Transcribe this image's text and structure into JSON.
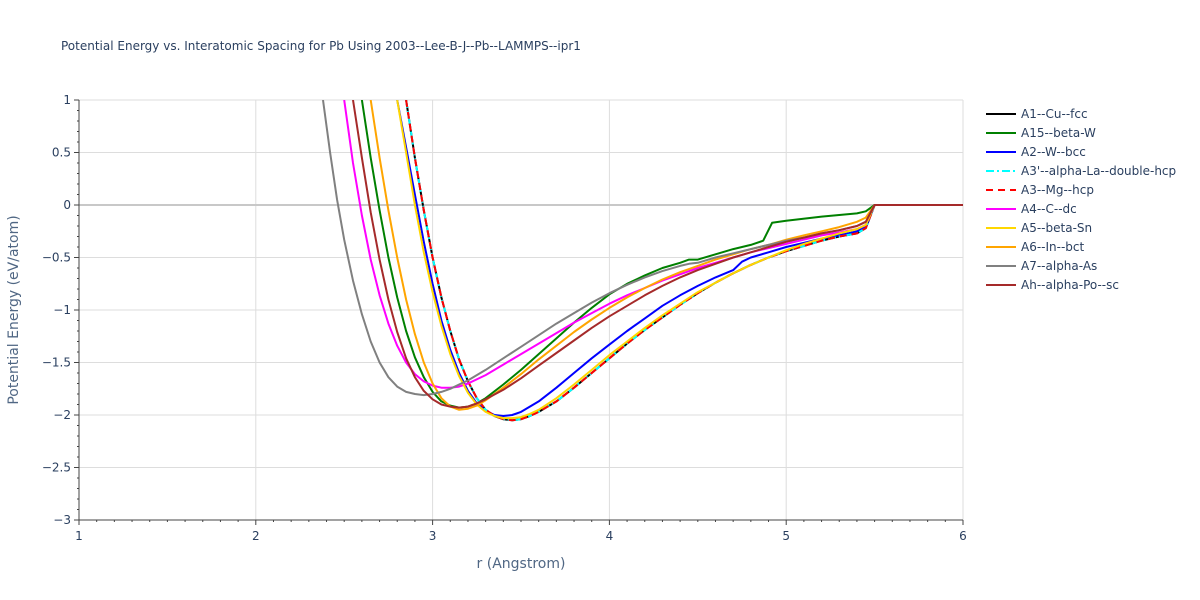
{
  "chart_data": {
    "type": "line",
    "title": "Potential Energy vs. Interatomic Spacing for Pb Using 2003--Lee-B-J--Pb--LAMMPS--ipr1",
    "xlabel": "r (Angstrom)",
    "ylabel": "Potential Energy (eV/atom)",
    "xlim": [
      1,
      6
    ],
    "ylim": [
      -3,
      1
    ],
    "x_ticks": [
      "1",
      "2",
      "3",
      "4",
      "5",
      "6"
    ],
    "y_ticks": [
      "1",
      "0.5",
      "0",
      "−0.5",
      "−1",
      "−1.5",
      "−2",
      "−2.5",
      "−3"
    ],
    "grid": true,
    "legend_position": "right",
    "series": [
      {
        "name": "A1--Cu--fcc",
        "color": "#000000",
        "dash": "solid",
        "x": [
          2.85,
          2.9,
          2.95,
          3.0,
          3.05,
          3.1,
          3.15,
          3.2,
          3.25,
          3.3,
          3.35,
          3.4,
          3.45,
          3.5,
          3.55,
          3.6,
          3.7,
          3.8,
          3.9,
          4.0,
          4.1,
          4.2,
          4.3,
          4.4,
          4.5,
          4.6,
          4.7,
          4.8,
          4.9,
          5.0,
          5.1,
          5.2,
          5.3,
          5.4,
          5.45,
          5.5,
          6.0
        ],
        "y": [
          1.0,
          0.45,
          -0.05,
          -0.5,
          -0.88,
          -1.2,
          -1.47,
          -1.68,
          -1.84,
          -1.95,
          -2.01,
          -2.04,
          -2.05,
          -2.04,
          -2.01,
          -1.97,
          -1.87,
          -1.74,
          -1.6,
          -1.46,
          -1.32,
          -1.19,
          -1.07,
          -0.95,
          -0.84,
          -0.74,
          -0.65,
          -0.57,
          -0.5,
          -0.44,
          -0.39,
          -0.34,
          -0.3,
          -0.27,
          -0.22,
          0.0,
          0.0
        ]
      },
      {
        "name": "A15--beta-W",
        "color": "#008000",
        "dash": "solid",
        "x": [
          2.6,
          2.65,
          2.7,
          2.75,
          2.8,
          2.85,
          2.9,
          2.95,
          3.0,
          3.05,
          3.1,
          3.15,
          3.2,
          3.25,
          3.3,
          3.4,
          3.5,
          3.6,
          3.7,
          3.8,
          3.9,
          4.0,
          4.1,
          4.2,
          4.3,
          4.4,
          4.45,
          4.5,
          4.6,
          4.7,
          4.8,
          4.87,
          4.92,
          5.0,
          5.2,
          5.4,
          5.45,
          5.5,
          6.0
        ],
        "y": [
          1.0,
          0.45,
          -0.05,
          -0.5,
          -0.88,
          -1.2,
          -1.45,
          -1.64,
          -1.78,
          -1.87,
          -1.91,
          -1.93,
          -1.92,
          -1.89,
          -1.84,
          -1.71,
          -1.57,
          -1.42,
          -1.27,
          -1.12,
          -0.98,
          -0.85,
          -0.75,
          -0.67,
          -0.6,
          -0.55,
          -0.52,
          -0.52,
          -0.47,
          -0.42,
          -0.38,
          -0.34,
          -0.17,
          -0.15,
          -0.11,
          -0.08,
          -0.06,
          0.0,
          0.0
        ]
      },
      {
        "name": "A2--W--bcc",
        "color": "#0000ff",
        "dash": "solid",
        "x": [
          2.8,
          2.85,
          2.9,
          2.95,
          3.0,
          3.05,
          3.1,
          3.15,
          3.2,
          3.25,
          3.3,
          3.35,
          3.4,
          3.45,
          3.5,
          3.6,
          3.7,
          3.8,
          3.9,
          4.0,
          4.1,
          4.2,
          4.3,
          4.4,
          4.5,
          4.6,
          4.7,
          4.75,
          4.8,
          4.9,
          5.0,
          5.1,
          5.2,
          5.3,
          5.4,
          5.45,
          5.5,
          6.0
        ],
        "y": [
          1.0,
          0.55,
          0.1,
          -0.35,
          -0.75,
          -1.1,
          -1.38,
          -1.6,
          -1.77,
          -1.89,
          -1.96,
          -2.0,
          -2.01,
          -2.0,
          -1.97,
          -1.87,
          -1.74,
          -1.6,
          -1.46,
          -1.33,
          -1.2,
          -1.08,
          -0.96,
          -0.86,
          -0.77,
          -0.69,
          -0.62,
          -0.54,
          -0.5,
          -0.45,
          -0.4,
          -0.36,
          -0.32,
          -0.29,
          -0.25,
          -0.21,
          0.0,
          0.0
        ]
      },
      {
        "name": "A3'--alpha-La--double-hcp",
        "color": "#00ffff",
        "dash": "dashdot",
        "x": [
          2.85,
          2.9,
          2.95,
          3.0,
          3.05,
          3.1,
          3.15,
          3.2,
          3.25,
          3.3,
          3.35,
          3.4,
          3.45,
          3.5,
          3.55,
          3.6,
          3.7,
          3.8,
          3.9,
          4.0,
          4.1,
          4.2,
          4.3,
          4.4,
          4.5,
          4.6,
          4.7,
          4.8,
          4.9,
          5.0,
          5.1,
          5.2,
          5.3,
          5.4,
          5.45,
          5.5,
          6.0
        ],
        "y": [
          1.0,
          0.45,
          -0.05,
          -0.5,
          -0.88,
          -1.2,
          -1.47,
          -1.68,
          -1.84,
          -1.95,
          -2.01,
          -2.04,
          -2.05,
          -2.04,
          -2.01,
          -1.97,
          -1.87,
          -1.74,
          -1.6,
          -1.46,
          -1.32,
          -1.19,
          -1.07,
          -0.95,
          -0.84,
          -0.74,
          -0.65,
          -0.57,
          -0.5,
          -0.44,
          -0.39,
          -0.34,
          -0.3,
          -0.27,
          -0.22,
          0.0,
          0.0
        ]
      },
      {
        "name": "A3--Mg--hcp",
        "color": "#ff0000",
        "dash": "dash",
        "x": [
          2.85,
          2.9,
          2.95,
          3.0,
          3.05,
          3.1,
          3.15,
          3.2,
          3.25,
          3.3,
          3.35,
          3.4,
          3.45,
          3.5,
          3.55,
          3.6,
          3.7,
          3.8,
          3.9,
          4.0,
          4.1,
          4.2,
          4.3,
          4.4,
          4.5,
          4.6,
          4.7,
          4.8,
          4.9,
          5.0,
          5.1,
          5.2,
          5.3,
          5.4,
          5.45,
          5.5,
          6.0
        ],
        "y": [
          1.0,
          0.45,
          -0.05,
          -0.5,
          -0.88,
          -1.2,
          -1.47,
          -1.68,
          -1.84,
          -1.95,
          -2.01,
          -2.04,
          -2.05,
          -2.04,
          -2.01,
          -1.97,
          -1.87,
          -1.74,
          -1.6,
          -1.46,
          -1.32,
          -1.19,
          -1.07,
          -0.95,
          -0.84,
          -0.74,
          -0.65,
          -0.57,
          -0.5,
          -0.44,
          -0.39,
          -0.34,
          -0.3,
          -0.27,
          -0.22,
          0.0,
          0.0
        ]
      },
      {
        "name": "A4--C--dc",
        "color": "#ff00ff",
        "dash": "solid",
        "x": [
          2.5,
          2.55,
          2.6,
          2.65,
          2.7,
          2.75,
          2.8,
          2.85,
          2.9,
          2.95,
          3.0,
          3.05,
          3.1,
          3.15,
          3.2,
          3.3,
          3.4,
          3.5,
          3.6,
          3.7,
          3.8,
          3.9,
          4.0,
          4.1,
          4.2,
          4.3,
          4.4,
          4.5,
          4.6,
          4.7,
          4.8,
          4.9,
          5.0,
          5.1,
          5.2,
          5.3,
          5.4,
          5.45,
          5.5,
          6.0
        ],
        "y": [
          1.0,
          0.4,
          -0.1,
          -0.52,
          -0.86,
          -1.13,
          -1.34,
          -1.5,
          -1.61,
          -1.68,
          -1.72,
          -1.74,
          -1.74,
          -1.73,
          -1.7,
          -1.62,
          -1.52,
          -1.42,
          -1.32,
          -1.22,
          -1.12,
          -1.03,
          -0.94,
          -0.86,
          -0.79,
          -0.72,
          -0.66,
          -0.6,
          -0.55,
          -0.5,
          -0.45,
          -0.41,
          -0.37,
          -0.33,
          -0.29,
          -0.26,
          -0.23,
          -0.19,
          0.0,
          0.0
        ]
      },
      {
        "name": "A5--beta-Sn",
        "color": "#ffd700",
        "dash": "solid",
        "x": [
          2.8,
          2.85,
          2.9,
          2.95,
          3.0,
          3.05,
          3.1,
          3.15,
          3.2,
          3.25,
          3.3,
          3.35,
          3.4,
          3.45,
          3.5,
          3.55,
          3.6,
          3.7,
          3.8,
          3.9,
          4.0,
          4.1,
          4.2,
          4.3,
          4.4,
          4.5,
          4.6,
          4.7,
          4.8,
          4.9,
          5.0,
          5.1,
          5.2,
          5.3,
          5.4,
          5.45,
          5.5,
          6.0
        ],
        "y": [
          1.0,
          0.5,
          0.0,
          -0.45,
          -0.83,
          -1.15,
          -1.42,
          -1.63,
          -1.79,
          -1.9,
          -1.97,
          -2.01,
          -2.03,
          -2.03,
          -2.02,
          -1.99,
          -1.95,
          -1.84,
          -1.71,
          -1.57,
          -1.43,
          -1.3,
          -1.17,
          -1.05,
          -0.94,
          -0.83,
          -0.74,
          -0.65,
          -0.57,
          -0.5,
          -0.43,
          -0.37,
          -0.32,
          -0.27,
          -0.23,
          -0.19,
          0.0,
          0.0
        ]
      },
      {
        "name": "A6--In--bct",
        "color": "#ffa500",
        "dash": "solid",
        "x": [
          2.65,
          2.7,
          2.75,
          2.8,
          2.85,
          2.9,
          2.95,
          3.0,
          3.05,
          3.1,
          3.15,
          3.2,
          3.25,
          3.3,
          3.4,
          3.5,
          3.6,
          3.7,
          3.8,
          3.9,
          4.0,
          4.1,
          4.2,
          4.3,
          4.4,
          4.5,
          4.6,
          4.7,
          4.8,
          4.9,
          5.0,
          5.1,
          5.2,
          5.3,
          5.4,
          5.45,
          5.5,
          6.0
        ],
        "y": [
          1.0,
          0.45,
          -0.05,
          -0.5,
          -0.9,
          -1.23,
          -1.5,
          -1.7,
          -1.84,
          -1.92,
          -1.95,
          -1.94,
          -1.91,
          -1.86,
          -1.74,
          -1.61,
          -1.47,
          -1.34,
          -1.21,
          -1.09,
          -0.98,
          -0.88,
          -0.79,
          -0.71,
          -0.64,
          -0.58,
          -0.52,
          -0.47,
          -0.42,
          -0.38,
          -0.33,
          -0.29,
          -0.25,
          -0.21,
          -0.16,
          -0.12,
          0.0,
          0.0
        ]
      },
      {
        "name": "A7--alpha-As",
        "color": "#808080",
        "dash": "solid",
        "x": [
          2.38,
          2.42,
          2.46,
          2.5,
          2.55,
          2.6,
          2.65,
          2.7,
          2.75,
          2.8,
          2.85,
          2.9,
          2.95,
          3.0,
          3.05,
          3.1,
          3.15,
          3.2,
          3.3,
          3.4,
          3.5,
          3.6,
          3.7,
          3.8,
          3.9,
          4.0,
          4.1,
          4.2,
          4.3,
          4.4,
          4.45,
          4.5,
          4.6,
          4.7,
          4.8,
          4.9,
          5.0,
          5.1,
          5.2,
          5.3,
          5.4,
          5.45,
          5.5,
          6.0
        ],
        "y": [
          1.0,
          0.5,
          0.05,
          -0.33,
          -0.72,
          -1.04,
          -1.3,
          -1.5,
          -1.64,
          -1.73,
          -1.78,
          -1.8,
          -1.81,
          -1.8,
          -1.78,
          -1.75,
          -1.71,
          -1.67,
          -1.57,
          -1.46,
          -1.35,
          -1.24,
          -1.13,
          -1.03,
          -0.93,
          -0.84,
          -0.76,
          -0.69,
          -0.63,
          -0.58,
          -0.56,
          -0.55,
          -0.5,
          -0.46,
          -0.42,
          -0.38,
          -0.34,
          -0.31,
          -0.27,
          -0.24,
          -0.2,
          -0.16,
          0.0,
          0.0
        ]
      },
      {
        "name": "Ah--alpha-Po--sc",
        "color": "#a52a2a",
        "dash": "solid",
        "x": [
          2.55,
          2.6,
          2.65,
          2.7,
          2.75,
          2.8,
          2.85,
          2.9,
          2.95,
          3.0,
          3.05,
          3.1,
          3.15,
          3.2,
          3.25,
          3.3,
          3.4,
          3.5,
          3.6,
          3.7,
          3.8,
          3.9,
          4.0,
          4.1,
          4.2,
          4.3,
          4.4,
          4.5,
          4.6,
          4.7,
          4.8,
          4.9,
          5.0,
          5.1,
          5.2,
          5.3,
          5.4,
          5.45,
          5.5,
          6.0
        ],
        "y": [
          1.0,
          0.45,
          -0.07,
          -0.52,
          -0.9,
          -1.21,
          -1.46,
          -1.64,
          -1.77,
          -1.85,
          -1.9,
          -1.92,
          -1.93,
          -1.92,
          -1.89,
          -1.85,
          -1.76,
          -1.65,
          -1.53,
          -1.41,
          -1.29,
          -1.17,
          -1.06,
          -0.96,
          -0.86,
          -0.77,
          -0.69,
          -0.62,
          -0.56,
          -0.5,
          -0.45,
          -0.4,
          -0.35,
          -0.31,
          -0.27,
          -0.24,
          -0.2,
          -0.16,
          0.0,
          0.0
        ]
      }
    ]
  }
}
